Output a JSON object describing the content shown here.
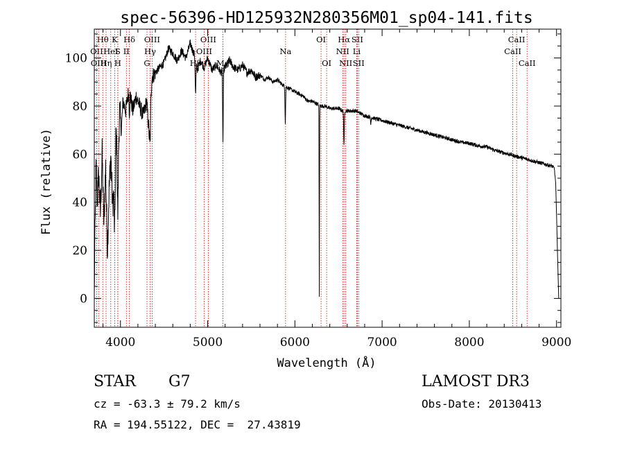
{
  "chart_data": {
    "type": "line",
    "title": "spec-56396-HD125932N280356M01_sp04-141.fits",
    "xlabel": "Wavelength (Å)",
    "ylabel": "Flux (relative)",
    "xlim": [
      3700,
      9050
    ],
    "ylim": [
      -12,
      112
    ],
    "xticks": [
      4000,
      5000,
      6000,
      7000,
      8000,
      9000
    ],
    "yticks": [
      0,
      20,
      40,
      60,
      80,
      100
    ],
    "series": [
      {
        "name": "spectrum",
        "anchors": [
          [
            3700,
            0
          ],
          [
            3705,
            20
          ],
          [
            3712,
            35
          ],
          [
            3720,
            55
          ],
          [
            3735,
            40
          ],
          [
            3750,
            52
          ],
          [
            3770,
            35
          ],
          [
            3790,
            60
          ],
          [
            3810,
            30
          ],
          [
            3830,
            55
          ],
          [
            3850,
            20
          ],
          [
            3870,
            45
          ],
          [
            3890,
            60
          ],
          [
            3910,
            38
          ],
          [
            3930,
            50
          ],
          [
            3950,
            70
          ],
          [
            3970,
            55
          ],
          [
            3990,
            78
          ],
          [
            4010,
            70
          ],
          [
            4030,
            82
          ],
          [
            4060,
            78
          ],
          [
            4100,
            88
          ],
          [
            4140,
            78
          ],
          [
            4180,
            84
          ],
          [
            4220,
            80
          ],
          [
            4260,
            76
          ],
          [
            4300,
            82
          ],
          [
            4330,
            68
          ],
          [
            4360,
            92
          ],
          [
            4400,
            94
          ],
          [
            4450,
            96
          ],
          [
            4500,
            98
          ],
          [
            4550,
            104
          ],
          [
            4600,
            102
          ],
          [
            4650,
            99
          ],
          [
            4700,
            103
          ],
          [
            4750,
            100
          ],
          [
            4800,
            106
          ],
          [
            4850,
            101
          ],
          [
            4880,
            95
          ],
          [
            4920,
            99
          ],
          [
            4960,
            96
          ],
          [
            5000,
            100
          ],
          [
            5050,
            95
          ],
          [
            5100,
            97
          ],
          [
            5150,
            94
          ],
          [
            5200,
            96
          ],
          [
            5250,
            99
          ],
          [
            5300,
            96
          ],
          [
            5350,
            95
          ],
          [
            5400,
            97
          ],
          [
            5450,
            94
          ],
          [
            5500,
            95
          ],
          [
            5550,
            92
          ],
          [
            5600,
            93
          ],
          [
            5650,
            91
          ],
          [
            5700,
            92
          ],
          [
            5750,
            90
          ],
          [
            5800,
            91
          ],
          [
            5850,
            89
          ],
          [
            5900,
            88
          ],
          [
            5950,
            87
          ],
          [
            6000,
            86
          ],
          [
            6050,
            85
          ],
          [
            6100,
            84
          ],
          [
            6150,
            82
          ],
          [
            6200,
            82
          ],
          [
            6250,
            81
          ],
          [
            6300,
            80
          ],
          [
            6350,
            80
          ],
          [
            6400,
            79
          ],
          [
            6450,
            79
          ],
          [
            6500,
            79
          ],
          [
            6550,
            78
          ],
          [
            6600,
            78
          ],
          [
            6650,
            78
          ],
          [
            6700,
            78
          ],
          [
            6750,
            77
          ],
          [
            6800,
            76
          ],
          [
            6900,
            75
          ],
          [
            7000,
            74
          ],
          [
            7100,
            73
          ],
          [
            7200,
            72
          ],
          [
            7300,
            71
          ],
          [
            7400,
            70
          ],
          [
            7500,
            69
          ],
          [
            7600,
            68
          ],
          [
            7700,
            67
          ],
          [
            7800,
            66
          ],
          [
            7900,
            65
          ],
          [
            8000,
            64.5
          ],
          [
            8100,
            63.5
          ],
          [
            8200,
            63
          ],
          [
            8300,
            61.5
          ],
          [
            8400,
            60.5
          ],
          [
            8500,
            59.5
          ],
          [
            8600,
            58.5
          ],
          [
            8700,
            57.5
          ],
          [
            8800,
            56.5
          ],
          [
            8900,
            55.5
          ],
          [
            8950,
            55
          ],
          [
            8975,
            54
          ],
          [
            8990,
            48
          ],
          [
            9000,
            35
          ],
          [
            9010,
            20
          ],
          [
            9025,
            0
          ]
        ],
        "absorption": [
          [
            3934,
            8,
            25
          ],
          [
            3969,
            8,
            20
          ],
          [
            4102,
            6,
            10
          ],
          [
            4340,
            6,
            12
          ],
          [
            4861,
            6,
            14
          ],
          [
            5175,
            5,
            30
          ],
          [
            5890,
            5,
            15
          ],
          [
            6280,
            3,
            80
          ],
          [
            6563,
            5,
            15
          ],
          [
            6870,
            4,
            3
          ]
        ]
      }
    ],
    "line_markers": [
      {
        "label": "Hθ",
        "wl": 3797,
        "row": 0
      },
      {
        "label": "OII",
        "wl": 3727,
        "row": 1
      },
      {
        "label": "OIII",
        "wl": 3750,
        "row": 2
      },
      {
        "label": "Hη",
        "wl": 3835,
        "row": 2
      },
      {
        "label": "K",
        "wl": 3934,
        "row": 0
      },
      {
        "label": "HeI",
        "wl": 3889,
        "row": 1
      },
      {
        "label": "S",
        "wl": 3970,
        "row": 1
      },
      {
        "label": "H",
        "wl": 3969,
        "row": 2
      },
      {
        "label": "Hδ",
        "wl": 4102,
        "row": 0
      },
      {
        "label": "II",
        "wl": 4068,
        "row": 1
      },
      {
        "label": "OIII",
        "wl": 4363,
        "row": 0
      },
      {
        "label": "Hγ",
        "wl": 4340,
        "row": 1
      },
      {
        "label": "G",
        "wl": 4304,
        "row": 2
      },
      {
        "label": "OIII",
        "wl": 5007,
        "row": 0
      },
      {
        "label": "OIII",
        "wl": 4959,
        "row": 1
      },
      {
        "label": "Hβ",
        "wl": 4861,
        "row": 2
      },
      {
        "label": "Mg",
        "wl": 5175,
        "row": 2
      },
      {
        "label": "Na",
        "wl": 5893,
        "row": 1
      },
      {
        "label": "OI",
        "wl": 6300,
        "row": 0
      },
      {
        "label": "OI",
        "wl": 6364,
        "row": 2
      },
      {
        "label": "Hα",
        "wl": 6563,
        "row": 0
      },
      {
        "label": "SII",
        "wl": 6716,
        "row": 0
      },
      {
        "label": "NII",
        "wl": 6548,
        "row": 1
      },
      {
        "label": "Li",
        "wl": 6708,
        "row": 1
      },
      {
        "label": "NII",
        "wl": 6583,
        "row": 2
      },
      {
        "label": "SII",
        "wl": 6731,
        "row": 2
      },
      {
        "label": "CaII",
        "wl": 8542,
        "row": 0
      },
      {
        "label": "CaII",
        "wl": 8498,
        "row": 1
      },
      {
        "label": "CaII",
        "wl": 8662,
        "row": 2
      }
    ]
  },
  "info": {
    "class": "STAR",
    "subclass": "G7",
    "survey": "LAMOST DR3",
    "cz": "cz = -63.3 ± 79.2 km/s",
    "obs_date": "Obs-Date: 20130413",
    "coords": "RA = 194.55122, DEC =  27.43819"
  }
}
